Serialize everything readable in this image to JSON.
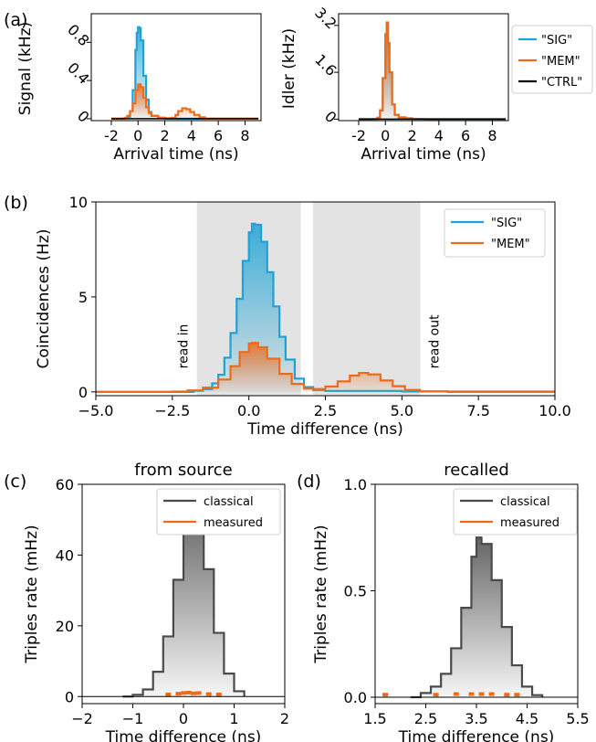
{
  "figure": {
    "panel_labels": [
      "(a)",
      "(b)",
      "(c)",
      "(d)"
    ],
    "colors": {
      "SIG": "#1ea3d4",
      "MEM": "#ef6b1a",
      "CTRL": "#000000",
      "classical": "#4a4a4a",
      "measured": "#ef6b1a",
      "window": "#e3e3e3"
    }
  },
  "chart_data": [
    {
      "id": "a-signal",
      "type": "area",
      "panel": "(a)",
      "title": "",
      "xlabel": "Arrival time (ns)",
      "ylabel": "Signal (kHz)",
      "xlim": [
        -3.5,
        9.2
      ],
      "ylim": [
        -0.02,
        1.1
      ],
      "xticks": [
        -2,
        0,
        2,
        4,
        6,
        8
      ],
      "yticks": [
        0,
        0.4,
        0.8
      ],
      "ytick_labels": [
        "0",
        "0.4",
        "0.8"
      ],
      "grid": false,
      "series": [
        {
          "name": "\"SIG\"",
          "color": "#1ea3d4",
          "x": [
            -2.0,
            -1.5,
            -1.0,
            -0.8,
            -0.6,
            -0.4,
            -0.2,
            -0.1,
            0.0,
            0.1,
            0.2,
            0.4,
            0.6,
            0.8,
            1.0,
            1.5,
            2.0,
            3.0,
            4.0,
            6.0,
            8.0,
            9.0
          ],
          "y": [
            0.0,
            0.0,
            0.005,
            0.02,
            0.08,
            0.3,
            0.72,
            0.9,
            0.96,
            0.95,
            0.82,
            0.45,
            0.2,
            0.07,
            0.03,
            0.01,
            0.0,
            0.0,
            0.0,
            0.0,
            0.0,
            0.0
          ]
        },
        {
          "name": "\"MEM\"",
          "color": "#ef6b1a",
          "x": [
            -2.0,
            -1.5,
            -1.0,
            -0.8,
            -0.6,
            -0.4,
            -0.2,
            0.0,
            0.2,
            0.4,
            0.6,
            0.8,
            1.0,
            1.5,
            2.0,
            2.5,
            2.8,
            3.0,
            3.3,
            3.6,
            3.9,
            4.2,
            4.6,
            5.0,
            6.0,
            8.0,
            9.0
          ],
          "y": [
            0.0,
            0.0,
            0.01,
            0.03,
            0.08,
            0.16,
            0.3,
            0.36,
            0.33,
            0.22,
            0.12,
            0.06,
            0.03,
            0.01,
            0.005,
            0.01,
            0.04,
            0.08,
            0.11,
            0.1,
            0.07,
            0.04,
            0.015,
            0.0,
            0.0,
            0.0,
            0.0
          ]
        },
        {
          "name": "\"CTRL\"",
          "color": "#000000",
          "x": [
            -2.0,
            9.0
          ],
          "y": [
            0.0,
            0.0
          ]
        }
      ],
      "legend": {
        "placement": "right",
        "entries": [
          "\"SIG\"",
          "\"MEM\"",
          "\"CTRL\""
        ]
      }
    },
    {
      "id": "a-idler",
      "type": "area",
      "panel": "(a)",
      "title": "",
      "xlabel": "Arrival time (ns)",
      "ylabel": "Idler (kHz)",
      "xlim": [
        -3.5,
        9.2
      ],
      "ylim": [
        -0.05,
        3.6
      ],
      "xticks": [
        -2,
        0,
        2,
        4,
        6,
        8
      ],
      "yticks": [
        0,
        1.6,
        3.2
      ],
      "ytick_labels": [
        "0",
        "1.6",
        "3.2"
      ],
      "grid": false,
      "series": [
        {
          "name": "\"SIG\"",
          "color": "#1ea3d4",
          "x": [
            -2.0,
            -1.0,
            -0.6,
            -0.4,
            -0.2,
            0.0,
            0.1,
            0.2,
            0.3,
            0.5,
            0.7,
            1.0,
            1.5,
            2.0,
            3.0,
            5.0,
            9.0
          ],
          "y": [
            0.0,
            0.01,
            0.05,
            0.3,
            1.4,
            2.9,
            3.3,
            2.6,
            1.6,
            0.5,
            0.15,
            0.06,
            0.03,
            0.01,
            0.0,
            0.0,
            0.0
          ]
        },
        {
          "name": "\"MEM\"",
          "color": "#ef6b1a",
          "x": [
            -2.0,
            -1.0,
            -0.6,
            -0.4,
            -0.2,
            0.0,
            0.1,
            0.2,
            0.3,
            0.5,
            0.7,
            1.0,
            1.5,
            2.0,
            3.0,
            5.0,
            9.0
          ],
          "y": [
            0.0,
            0.01,
            0.05,
            0.3,
            1.4,
            2.9,
            3.3,
            2.6,
            1.6,
            0.5,
            0.15,
            0.06,
            0.03,
            0.01,
            0.0,
            0.0,
            0.0
          ]
        },
        {
          "name": "\"CTRL\"",
          "color": "#000000",
          "x": [
            -2.0,
            9.0
          ],
          "y": [
            0.0,
            0.0
          ]
        }
      ]
    },
    {
      "id": "b",
      "type": "area",
      "panel": "(b)",
      "title": "",
      "xlabel": "Time difference (ns)",
      "ylabel": "Coincidences (Hz)",
      "xlim": [
        -5.0,
        10.0
      ],
      "ylim": [
        -0.2,
        10.0
      ],
      "xticks": [
        -5.0,
        -2.5,
        0.0,
        2.5,
        5.0,
        7.5,
        10.0
      ],
      "xtick_labels": [
        "−5.0",
        "−2.5",
        "0.0",
        "2.5",
        "5.0",
        "7.5",
        "10.0"
      ],
      "yticks": [
        0,
        5,
        10
      ],
      "ytick_labels": [
        "0",
        "5",
        "10"
      ],
      "grid": false,
      "shaded_windows": [
        {
          "x": [
            -1.7,
            1.7
          ],
          "label": "read in"
        },
        {
          "x": [
            2.1,
            5.6
          ],
          "label": "read out"
        }
      ],
      "series": [
        {
          "name": "\"SIG\"",
          "color": "#1ea3d4",
          "x": [
            -5.0,
            -2.5,
            -1.8,
            -1.5,
            -1.2,
            -1.0,
            -0.8,
            -0.6,
            -0.4,
            -0.2,
            0.0,
            0.1,
            0.2,
            0.4,
            0.6,
            0.8,
            1.0,
            1.2,
            1.5,
            1.8,
            2.1,
            2.5,
            5.0,
            10.0
          ],
          "y": [
            0.0,
            0.0,
            0.06,
            0.15,
            0.45,
            0.9,
            1.8,
            3.1,
            4.9,
            6.9,
            8.4,
            8.85,
            8.8,
            7.9,
            6.3,
            4.5,
            2.9,
            1.7,
            0.7,
            0.25,
            0.1,
            0.05,
            0.02,
            0.0
          ]
        },
        {
          "name": "\"MEM\"",
          "color": "#ef6b1a",
          "x": [
            -5.0,
            -2.5,
            -2.0,
            -1.5,
            -1.0,
            -0.6,
            -0.3,
            0.0,
            0.1,
            0.3,
            0.6,
            1.0,
            1.4,
            1.8,
            2.1,
            2.5,
            2.9,
            3.3,
            3.6,
            3.9,
            4.3,
            4.7,
            5.1,
            5.6,
            6.5,
            10.0
          ],
          "y": [
            0.0,
            0.02,
            0.08,
            0.22,
            0.65,
            1.35,
            2.1,
            2.55,
            2.58,
            2.35,
            1.75,
            0.95,
            0.42,
            0.17,
            0.15,
            0.28,
            0.55,
            0.86,
            1.0,
            0.92,
            0.6,
            0.3,
            0.1,
            0.03,
            0.0,
            0.0
          ]
        }
      ],
      "legend": {
        "placement": "top-right",
        "entries": [
          "\"SIG\"",
          "\"MEM\""
        ]
      }
    },
    {
      "id": "c",
      "type": "area",
      "panel": "(c)",
      "title": "from source",
      "xlabel": "Time difference (ns)",
      "ylabel": "Triples rate (mHz)",
      "xlim": [
        -2.0,
        2.0
      ],
      "ylim": [
        -2.0,
        60.0
      ],
      "xticks": [
        -2,
        -1,
        0,
        1,
        2
      ],
      "xtick_labels": [
        "−2",
        "−1",
        "0",
        "1",
        "2"
      ],
      "yticks": [
        0,
        20,
        40,
        60
      ],
      "ytick_labels": [
        "0",
        "20",
        "40",
        "60"
      ],
      "grid": false,
      "series": [
        {
          "name": "classical",
          "color": "#4a4a4a",
          "x": [
            -1.2,
            -1.0,
            -0.8,
            -0.6,
            -0.4,
            -0.2,
            0.0,
            0.1,
            0.2,
            0.4,
            0.6,
            0.8,
            1.0,
            1.2
          ],
          "y": [
            0.0,
            0.5,
            2.0,
            7.0,
            17.0,
            33.0,
            48.0,
            53.0,
            49.0,
            36.0,
            18.0,
            6.5,
            1.5,
            0.0
          ]
        },
        {
          "name": "measured",
          "color": "#ef6b1a",
          "x": [
            -0.3,
            -0.1,
            0.0,
            0.1,
            0.2,
            0.3,
            0.5,
            0.7
          ],
          "y": [
            0.6,
            0.8,
            1.0,
            1.1,
            0.9,
            1.0,
            0.7,
            0.6
          ]
        }
      ],
      "legend": {
        "placement": "top-right",
        "entries": [
          "classical",
          "measured"
        ]
      }
    },
    {
      "id": "d",
      "type": "area",
      "panel": "(d)",
      "title": "recalled",
      "xlabel": "Time difference (ns)",
      "ylabel": "Triples rate (mHz)",
      "xlim": [
        1.5,
        5.5
      ],
      "ylim": [
        -0.03,
        1.0
      ],
      "xticks": [
        1.5,
        2.5,
        3.5,
        4.5,
        5.5
      ],
      "xtick_labels": [
        "1.5",
        "2.5",
        "3.5",
        "4.5",
        "5.5"
      ],
      "yticks": [
        0.0,
        0.5,
        1.0
      ],
      "ytick_labels": [
        "0.0",
        "0.5",
        "1.0"
      ],
      "grid": false,
      "series": [
        {
          "name": "classical",
          "color": "#4a4a4a",
          "x": [
            2.2,
            2.4,
            2.6,
            2.8,
            3.0,
            3.2,
            3.4,
            3.5,
            3.6,
            3.8,
            4.0,
            4.2,
            4.4,
            4.6,
            4.8
          ],
          "y": [
            0.0,
            0.02,
            0.05,
            0.11,
            0.23,
            0.42,
            0.66,
            0.75,
            0.72,
            0.55,
            0.33,
            0.15,
            0.05,
            0.01,
            0.0
          ]
        },
        {
          "name": "measured",
          "color": "#ef6b1a",
          "x": [
            1.7,
            2.7,
            3.1,
            3.4,
            3.6,
            3.8,
            4.1,
            4.3
          ],
          "y": [
            0.012,
            0.012,
            0.015,
            0.015,
            0.015,
            0.015,
            0.012,
            0.012
          ]
        }
      ],
      "legend": {
        "placement": "top-right",
        "entries": [
          "classical",
          "measured"
        ]
      }
    }
  ]
}
